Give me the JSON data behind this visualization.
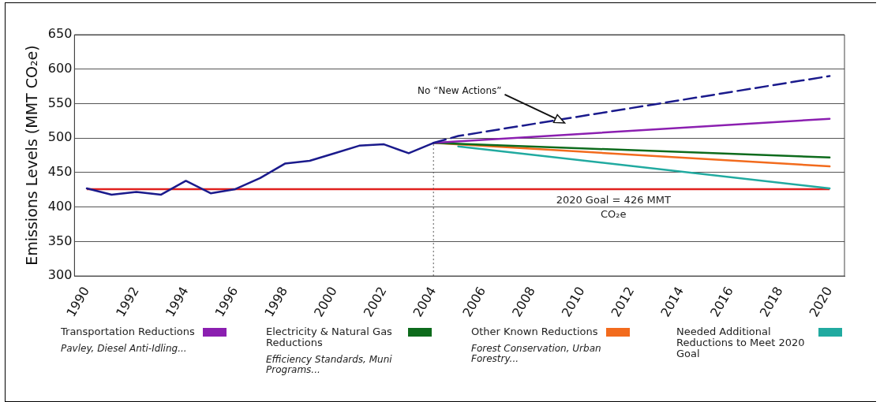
{
  "chart_data": {
    "type": "line",
    "ylabel": "Emissions Levels (MMT CO₂e)",
    "xlim": [
      1989.5,
      2020.6
    ],
    "xticks": [
      1990,
      1992,
      1994,
      1996,
      1998,
      2000,
      2002,
      2004,
      2006,
      2008,
      2010,
      2012,
      2014,
      2016,
      2018,
      2020
    ],
    "ylim": [
      300,
      650
    ],
    "yticks": [
      300,
      350,
      400,
      450,
      500,
      550,
      600,
      650
    ],
    "grid": "y",
    "legend": "bottom",
    "marker": "none",
    "series": [
      {
        "color": "#1a1a8c",
        "x": [
          1990,
          1991,
          1992,
          1993,
          1994,
          1995,
          1996,
          1997,
          1998,
          1999,
          2000,
          2001,
          2002,
          2003,
          2004
        ],
        "values": [
          427,
          418,
          422,
          418,
          438,
          420,
          426,
          442,
          463,
          467,
          478,
          489,
          491,
          478,
          493
        ]
      },
      {
        "color": "#1a1a8c",
        "line_style": "dashed",
        "x": [
          2004,
          2005,
          2020
        ],
        "values": [
          493,
          503,
          590
        ]
      },
      {
        "name": "Transportation Reductions",
        "color": "#8b1fb0",
        "x": [
          2004,
          2020
        ],
        "values": [
          493,
          528
        ]
      },
      {
        "name": "Electricity & Natural Gas Reductions",
        "color": "#0d6b1c",
        "x": [
          2004,
          2020
        ],
        "values": [
          493,
          472
        ]
      },
      {
        "name": "Other Known Reductions",
        "color": "#f26b1d",
        "x": [
          2004,
          2020
        ],
        "values": [
          493,
          459
        ]
      },
      {
        "name": "Needed Additional Reductions to Meet 2020 Goal",
        "color": "#21aaa0",
        "x": [
          2005,
          2020
        ],
        "values": [
          488,
          427
        ]
      }
    ],
    "ref_lines": [
      {
        "axis": "y",
        "value": 426,
        "label": "2020 Goal = 426 MMT CO₂e",
        "color": "#e0201e"
      },
      {
        "axis": "x",
        "value": 2004,
        "color": "#555555",
        "line_style": "dotted"
      }
    ],
    "annotations": [
      {
        "text": "No “New Actions”",
        "x": 2009.3,
        "y": 522
      },
      "Pavley, Diesel Anti-Idling...",
      "Efficiency Standards, Muni Programs...",
      "Forest Conservation, Urban Forestry..."
    ]
  }
}
